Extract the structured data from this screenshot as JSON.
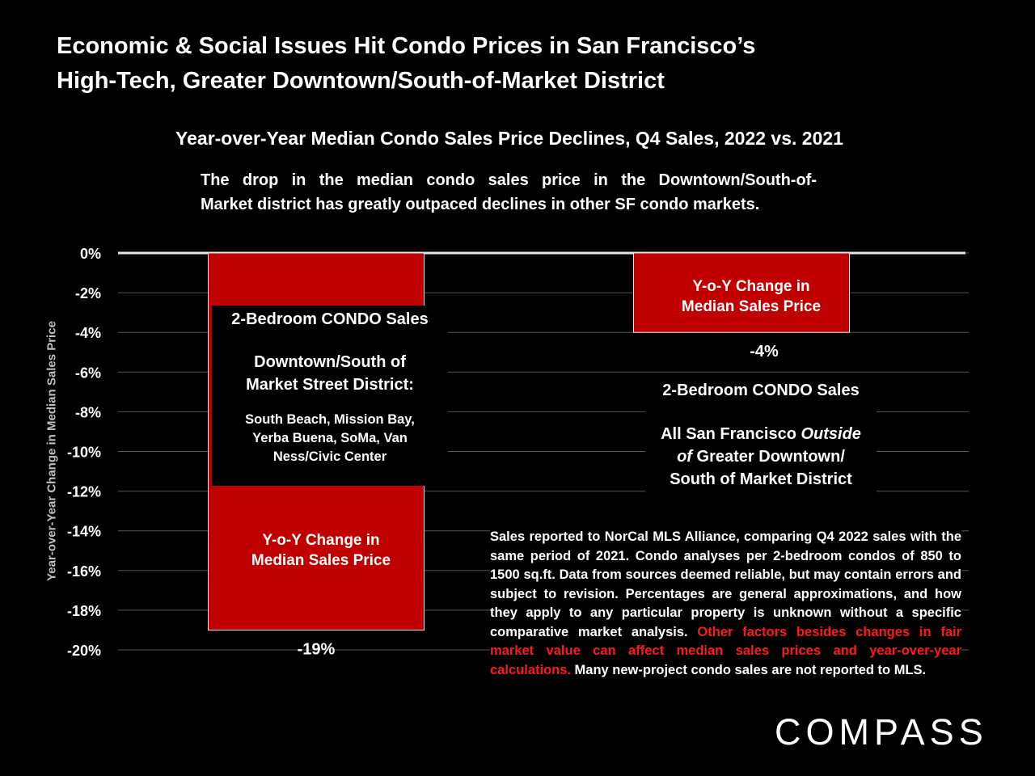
{
  "title": {
    "line1": "Economic & Social Issues Hit Condo Prices in San Francisco’s",
    "line2": "High-Tech, Greater Downtown/South-of-Market District"
  },
  "chart_title": "Year-over-Year Median Condo Sales Price Declines, Q4 Sales, 2022 vs. 2021",
  "description": {
    "line1": "The drop in the median condo sales price in the Downtown/South-of-",
    "line2": "Market district has greatly outpaced declines in other SF condo markets."
  },
  "chart_data": {
    "type": "bar",
    "categories": [
      "Downtown/South of Market Street District",
      "All San Francisco Outside of Greater Downtown/ South of Market District"
    ],
    "values": [
      -19,
      -4
    ],
    "data_labels": [
      "-19%",
      "-4%"
    ],
    "ylabel": "Year-over-Year Change in Median Sales Price",
    "ylim": [
      -20,
      0
    ],
    "yticks": [
      "0%",
      "-2%",
      "-4%",
      "-6%",
      "-8%",
      "-10%",
      "-12%",
      "-14%",
      "-16%",
      "-18%",
      "-20%"
    ],
    "grid": true,
    "bar_color": "#c00000",
    "background": "#000000"
  },
  "annotations": {
    "bar1": {
      "heading": "2-Bedroom CONDO Sales",
      "district": "Downtown/South of Market Street District:",
      "district_line1": "Downtown/South of",
      "district_line2": "Market Street District:",
      "neighborhoods_line1": "South Beach, Mission Bay,",
      "neighborhoods_line2": "Yerba Buena, SoMa, Van",
      "neighborhoods_line3": "Ness/Civic Center",
      "bar_label_line1": "Y-o-Y Change in",
      "bar_label_line2": "Median Sales Price"
    },
    "bar2": {
      "heading": "2-Bedroom CONDO Sales",
      "line1_a": "All San Francisco ",
      "line1_b": "Outside",
      "line2_a": "of",
      "line2_b": " Greater Downtown/",
      "line3": "South of Market District",
      "bar_label_line1": "Y-o-Y Change in",
      "bar_label_line2": "Median Sales Price"
    }
  },
  "footnote": {
    "text1": "Sales reported to NorCal MLS Alliance, comparing Q4 2022 sales with the same period of 2021. Condo analyses per 2-bedroom condos of 850 to 1500 sq.ft. Data from sources deemed reliable, but may contain errors and subject to revision. Percentages are general approximations, and how they apply to any particular property is unknown without a specific comparative market analysis. ",
    "text_red": "Other factors besides changes in fair market value can affect median sales prices and year-over-year calculations.",
    "text2": " Many new-project condo sales are not reported to MLS."
  },
  "logo": "COMPASS"
}
